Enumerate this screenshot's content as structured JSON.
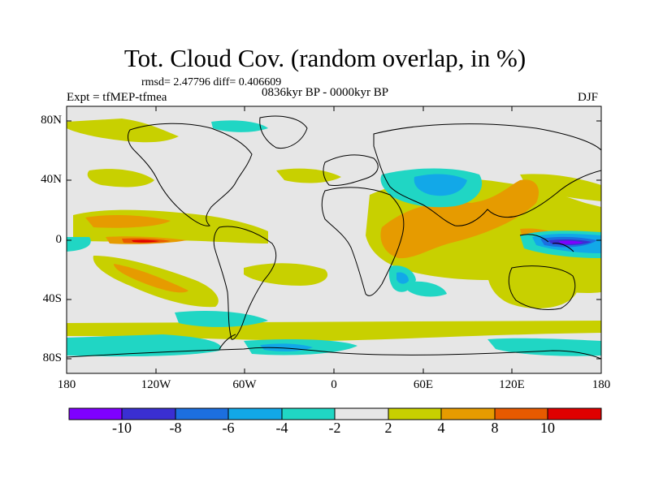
{
  "title": "Tot. Cloud Cov. (random overlap, in %)",
  "stats_line": "rmsd= 2.47796  diff= 0.406609",
  "expt_label": "Expt = tfMEP-tfmea",
  "period_label": "0836kyr BP - 0000kyr BP",
  "season_label": "DJF",
  "y_axis": {
    "ticks": [
      "80N",
      "40N",
      "0",
      "40S",
      "80S"
    ],
    "values": [
      80,
      40,
      0,
      -40,
      -80
    ],
    "range": [
      -90,
      90
    ]
  },
  "x_axis": {
    "ticks": [
      "180",
      "120W",
      "60W",
      "0",
      "60E",
      "120E",
      "180"
    ],
    "values": [
      -180,
      -120,
      -60,
      0,
      60,
      120,
      180
    ],
    "range": [
      -180,
      180
    ]
  },
  "colorbar": {
    "labels": [
      "-10",
      "-8",
      "-6",
      "-4",
      "-2",
      "2",
      "4",
      "8",
      "10"
    ],
    "colors": [
      "#7f00ff",
      "#3a2fd2",
      "#1c6fe0",
      "#12a8e8",
      "#20d6c4",
      "#e6e6e6",
      "#c8d000",
      "#e69b00",
      "#e85a00",
      "#e00000"
    ]
  },
  "anomaly_regions": [
    {
      "name": "tropical-africa-arabia-increase",
      "level": "4 to 8",
      "lon": [
        40,
        110
      ],
      "lat": [
        -15,
        25
      ]
    },
    {
      "name": "west-pacific-decrease",
      "level": "-10 to -8",
      "lon": [
        140,
        180
      ],
      "lat": [
        -5,
        5
      ]
    },
    {
      "name": "central-pacific-equatorial-increase",
      "level": "8 to 10",
      "lon": [
        -150,
        -120
      ],
      "lat": [
        -3,
        3
      ]
    },
    {
      "name": "central-asia-decrease",
      "level": "-6 to -4",
      "lon": [
        40,
        95
      ],
      "lat": [
        25,
        45
      ]
    },
    {
      "name": "southern-ocean-decrease",
      "level": "-4 to -2",
      "lon": [
        -180,
        180
      ],
      "lat": [
        -80,
        -60
      ]
    }
  ]
}
